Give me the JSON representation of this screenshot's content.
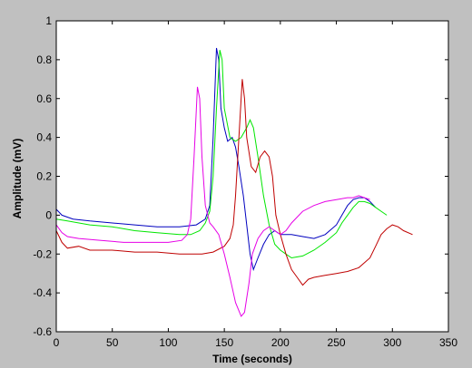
{
  "chart_data": {
    "type": "line",
    "title": "",
    "xlabel": "Time (seconds)",
    "ylabel": "Amplitude (mV)",
    "xlim": [
      0,
      350
    ],
    "ylim": [
      -0.6,
      1
    ],
    "xticks": [
      0,
      50,
      100,
      150,
      200,
      250,
      300,
      350
    ],
    "yticks": [
      -0.6,
      -0.4,
      -0.2,
      0,
      0.2,
      0.4,
      0.6,
      0.8,
      1
    ],
    "xtick_labels": [
      "0",
      "50",
      "100",
      "150",
      "200",
      "250",
      "300",
      "350"
    ],
    "ytick_labels": [
      "-0.6",
      "-0.4",
      "-0.2",
      "0",
      "0.2",
      "0.4",
      "0.6",
      "0.8",
      "1"
    ],
    "grid": false,
    "legend": false,
    "background": "#c0c0c0",
    "plot_background": "#ffffff",
    "series": [
      {
        "color": "#0000bf",
        "points": [
          [
            0,
            0.03
          ],
          [
            5,
            0.0
          ],
          [
            15,
            -0.02
          ],
          [
            30,
            -0.03
          ],
          [
            50,
            -0.04
          ],
          [
            70,
            -0.05
          ],
          [
            90,
            -0.06
          ],
          [
            110,
            -0.06
          ],
          [
            125,
            -0.05
          ],
          [
            133,
            -0.02
          ],
          [
            137,
            0.05
          ],
          [
            140,
            0.4
          ],
          [
            143,
            0.86
          ],
          [
            145,
            0.8
          ],
          [
            147,
            0.55
          ],
          [
            150,
            0.45
          ],
          [
            153,
            0.38
          ],
          [
            157,
            0.4
          ],
          [
            160,
            0.35
          ],
          [
            163,
            0.25
          ],
          [
            167,
            0.1
          ],
          [
            170,
            -0.05
          ],
          [
            173,
            -0.2
          ],
          [
            176,
            -0.28
          ],
          [
            180,
            -0.22
          ],
          [
            185,
            -0.15
          ],
          [
            190,
            -0.1
          ],
          [
            195,
            -0.08
          ],
          [
            200,
            -0.1
          ],
          [
            210,
            -0.1
          ],
          [
            220,
            -0.11
          ],
          [
            230,
            -0.12
          ],
          [
            240,
            -0.1
          ],
          [
            250,
            -0.05
          ],
          [
            255,
            0.0
          ],
          [
            260,
            0.05
          ],
          [
            265,
            0.08
          ],
          [
            270,
            0.09
          ],
          [
            275,
            0.09
          ],
          [
            280,
            0.07
          ],
          [
            285,
            0.04
          ]
        ]
      },
      {
        "color": "#00e600",
        "points": [
          [
            0,
            -0.02
          ],
          [
            10,
            -0.03
          ],
          [
            30,
            -0.05
          ],
          [
            50,
            -0.06
          ],
          [
            70,
            -0.08
          ],
          [
            90,
            -0.09
          ],
          [
            110,
            -0.1
          ],
          [
            120,
            -0.1
          ],
          [
            128,
            -0.08
          ],
          [
            133,
            -0.04
          ],
          [
            137,
            0.02
          ],
          [
            140,
            0.2
          ],
          [
            143,
            0.55
          ],
          [
            146,
            0.85
          ],
          [
            148,
            0.8
          ],
          [
            150,
            0.55
          ],
          [
            155,
            0.4
          ],
          [
            160,
            0.38
          ],
          [
            165,
            0.4
          ],
          [
            170,
            0.45
          ],
          [
            173,
            0.49
          ],
          [
            176,
            0.45
          ],
          [
            180,
            0.3
          ],
          [
            185,
            0.1
          ],
          [
            190,
            -0.05
          ],
          [
            195,
            -0.15
          ],
          [
            200,
            -0.18
          ],
          [
            205,
            -0.2
          ],
          [
            210,
            -0.22
          ],
          [
            220,
            -0.21
          ],
          [
            230,
            -0.18
          ],
          [
            240,
            -0.14
          ],
          [
            250,
            -0.09
          ],
          [
            255,
            -0.04
          ],
          [
            260,
            0.0
          ],
          [
            265,
            0.04
          ],
          [
            270,
            0.07
          ],
          [
            275,
            0.07
          ],
          [
            280,
            0.06
          ],
          [
            285,
            0.04
          ],
          [
            290,
            0.02
          ],
          [
            295,
            0.0
          ]
        ]
      },
      {
        "color": "#bf0000",
        "points": [
          [
            0,
            -0.08
          ],
          [
            5,
            -0.14
          ],
          [
            10,
            -0.17
          ],
          [
            20,
            -0.16
          ],
          [
            30,
            -0.18
          ],
          [
            50,
            -0.18
          ],
          [
            70,
            -0.19
          ],
          [
            90,
            -0.19
          ],
          [
            110,
            -0.2
          ],
          [
            130,
            -0.2
          ],
          [
            140,
            -0.19
          ],
          [
            150,
            -0.16
          ],
          [
            155,
            -0.12
          ],
          [
            158,
            -0.05
          ],
          [
            160,
            0.1
          ],
          [
            163,
            0.4
          ],
          [
            166,
            0.7
          ],
          [
            168,
            0.6
          ],
          [
            170,
            0.4
          ],
          [
            174,
            0.25
          ],
          [
            178,
            0.22
          ],
          [
            182,
            0.3
          ],
          [
            186,
            0.33
          ],
          [
            190,
            0.3
          ],
          [
            193,
            0.2
          ],
          [
            196,
            0.0
          ],
          [
            200,
            -0.1
          ],
          [
            205,
            -0.2
          ],
          [
            210,
            -0.28
          ],
          [
            215,
            -0.32
          ],
          [
            220,
            -0.36
          ],
          [
            225,
            -0.33
          ],
          [
            230,
            -0.32
          ],
          [
            240,
            -0.31
          ],
          [
            250,
            -0.3
          ],
          [
            260,
            -0.29
          ],
          [
            270,
            -0.27
          ],
          [
            280,
            -0.22
          ],
          [
            285,
            -0.16
          ],
          [
            290,
            -0.1
          ],
          [
            295,
            -0.07
          ],
          [
            300,
            -0.05
          ],
          [
            305,
            -0.06
          ],
          [
            310,
            -0.08
          ],
          [
            318,
            -0.1
          ]
        ]
      },
      {
        "color": "#e600e6",
        "points": [
          [
            0,
            -0.05
          ],
          [
            5,
            -0.09
          ],
          [
            10,
            -0.11
          ],
          [
            20,
            -0.12
          ],
          [
            40,
            -0.13
          ],
          [
            60,
            -0.14
          ],
          [
            80,
            -0.14
          ],
          [
            100,
            -0.14
          ],
          [
            112,
            -0.13
          ],
          [
            117,
            -0.1
          ],
          [
            120,
            -0.02
          ],
          [
            123,
            0.3
          ],
          [
            126,
            0.66
          ],
          [
            128,
            0.6
          ],
          [
            130,
            0.3
          ],
          [
            133,
            0.05
          ],
          [
            137,
            -0.04
          ],
          [
            140,
            -0.06
          ],
          [
            145,
            -0.1
          ],
          [
            150,
            -0.2
          ],
          [
            155,
            -0.32
          ],
          [
            160,
            -0.45
          ],
          [
            165,
            -0.52
          ],
          [
            168,
            -0.5
          ],
          [
            172,
            -0.35
          ],
          [
            175,
            -0.2
          ],
          [
            180,
            -0.12
          ],
          [
            185,
            -0.08
          ],
          [
            190,
            -0.06
          ],
          [
            195,
            -0.08
          ],
          [
            200,
            -0.1
          ],
          [
            205,
            -0.08
          ],
          [
            210,
            -0.04
          ],
          [
            215,
            -0.01
          ],
          [
            220,
            0.02
          ],
          [
            230,
            0.05
          ],
          [
            240,
            0.07
          ],
          [
            250,
            0.08
          ],
          [
            260,
            0.09
          ],
          [
            265,
            0.09
          ],
          [
            270,
            0.1
          ],
          [
            275,
            0.09
          ],
          [
            280,
            0.08
          ]
        ]
      }
    ]
  }
}
